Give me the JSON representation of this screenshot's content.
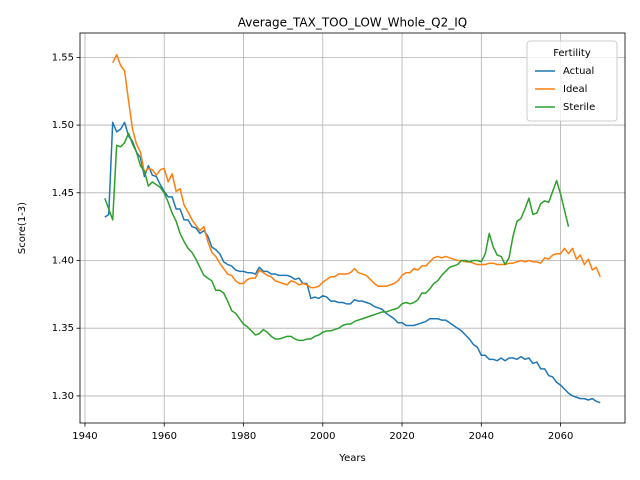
{
  "chart_data": {
    "type": "line",
    "title": "Average_TAX_TOO_LOW_Whole_Q2_IQ",
    "x_label": "Years",
    "y_label": "Score(1-3)",
    "legend_title": "Fertility",
    "legend_position": "upper right",
    "grid": true,
    "xlim": [
      1938.75,
      2076.25
    ],
    "ylim": [
      1.28,
      1.568
    ],
    "xticks": [
      1940,
      1960,
      1980,
      2000,
      2020,
      2040,
      2060
    ],
    "yticks": [
      {
        "value": 1.3,
        "label": "1.30"
      },
      1.35,
      {
        "value": 1.4,
        "label": "1.40"
      },
      1.45,
      {
        "value": 1.5,
        "label": "1.50"
      },
      1.55
    ],
    "x": [
      1945,
      1946,
      1947,
      1948,
      1949,
      1950,
      1951,
      1952,
      1953,
      1954,
      1955,
      1956,
      1957,
      1958,
      1959,
      1960,
      1961,
      1962,
      1963,
      1964,
      1965,
      1966,
      1967,
      1968,
      1969,
      1970,
      1971,
      1972,
      1973,
      1974,
      1975,
      1976,
      1977,
      1978,
      1979,
      1980,
      1981,
      1982,
      1983,
      1984,
      1985,
      1986,
      1987,
      1988,
      1989,
      1990,
      1991,
      1992,
      1993,
      1994,
      1995,
      1996,
      1997,
      1998,
      1999,
      2000,
      2001,
      2002,
      2003,
      2004,
      2005,
      2006,
      2007,
      2008,
      2009,
      2010,
      2011,
      2012,
      2013,
      2014,
      2015,
      2016,
      2017,
      2018,
      2019,
      2020,
      2021,
      2022,
      2023,
      2024,
      2025,
      2026,
      2027,
      2028,
      2029,
      2030,
      2031,
      2032,
      2033,
      2034,
      2035,
      2036,
      2037,
      2038,
      2039,
      2040,
      2041,
      2042,
      2043,
      2044,
      2045,
      2046,
      2047,
      2048,
      2049,
      2050,
      2051,
      2052,
      2053,
      2054,
      2055,
      2056,
      2057,
      2058,
      2059,
      2060,
      2061,
      2062,
      2063,
      2064,
      2065,
      2066,
      2067,
      2068,
      2069,
      2070
    ],
    "series": [
      {
        "name": "Actual",
        "color": "#1f77b4",
        "values": [
          1.432,
          1.434,
          1.502,
          1.495,
          1.497,
          1.502,
          1.492,
          1.488,
          1.48,
          1.476,
          1.462,
          1.47,
          1.463,
          1.462,
          1.456,
          1.451,
          1.447,
          1.447,
          1.438,
          1.438,
          1.43,
          1.43,
          1.425,
          1.424,
          1.42,
          1.422,
          1.418,
          1.41,
          1.408,
          1.405,
          1.399,
          1.397,
          1.396,
          1.393,
          1.392,
          1.392,
          1.391,
          1.391,
          1.39,
          1.395,
          1.392,
          1.392,
          1.39,
          1.39,
          1.389,
          1.389,
          1.389,
          1.388,
          1.386,
          1.387,
          1.383,
          1.383,
          1.372,
          1.373,
          1.372,
          1.374,
          1.373,
          1.37,
          1.37,
          1.369,
          1.369,
          1.368,
          1.368,
          1.371,
          1.37,
          1.37,
          1.369,
          1.368,
          1.366,
          1.365,
          1.364,
          1.361,
          1.359,
          1.357,
          1.354,
          1.354,
          1.352,
          1.352,
          1.352,
          1.353,
          1.354,
          1.355,
          1.357,
          1.357,
          1.357,
          1.356,
          1.356,
          1.354,
          1.352,
          1.35,
          1.348,
          1.345,
          1.342,
          1.338,
          1.336,
          1.33,
          1.33,
          1.327,
          1.327,
          1.326,
          1.328,
          1.326,
          1.328,
          1.328,
          1.327,
          1.329,
          1.327,
          1.328,
          1.324,
          1.325,
          1.32,
          1.32,
          1.315,
          1.314,
          1.31,
          1.308,
          1.305,
          1.302,
          1.3,
          1.299,
          1.298,
          1.298,
          1.297,
          1.298,
          1.296,
          1.295
        ]
      },
      {
        "name": "Ideal",
        "color": "#ff7f0e",
        "values": [
          null,
          null,
          1.546,
          1.552,
          1.544,
          1.54,
          1.518,
          1.497,
          1.486,
          1.48,
          1.465,
          1.468,
          1.467,
          1.463,
          1.467,
          1.468,
          1.458,
          1.464,
          1.451,
          1.453,
          1.441,
          1.436,
          1.43,
          1.426,
          1.422,
          1.425,
          1.414,
          1.406,
          1.403,
          1.398,
          1.394,
          1.39,
          1.389,
          1.385,
          1.383,
          1.383,
          1.386,
          1.387,
          1.387,
          1.393,
          1.391,
          1.389,
          1.388,
          1.385,
          1.384,
          1.383,
          1.382,
          1.385,
          1.384,
          1.382,
          1.383,
          1.382,
          1.38,
          1.38,
          1.381,
          1.384,
          1.386,
          1.388,
          1.388,
          1.39,
          1.39,
          1.39,
          1.391,
          1.394,
          1.391,
          1.39,
          1.389,
          1.386,
          1.383,
          1.381,
          1.381,
          1.381,
          1.382,
          1.383,
          1.385,
          1.389,
          1.391,
          1.391,
          1.394,
          1.393,
          1.396,
          1.396,
          1.399,
          1.402,
          1.403,
          1.402,
          1.403,
          1.402,
          1.401,
          1.4,
          1.4,
          1.399,
          1.399,
          1.398,
          1.397,
          1.397,
          1.397,
          1.398,
          1.398,
          1.397,
          1.397,
          1.397,
          1.398,
          1.398,
          1.399,
          1.4,
          1.399,
          1.4,
          1.399,
          1.399,
          1.398,
          1.402,
          1.401,
          1.404,
          1.405,
          1.405,
          1.409,
          1.405,
          1.409,
          1.401,
          1.404,
          1.397,
          1.401,
          1.393,
          1.395,
          1.388
        ]
      },
      {
        "name": "Sterile",
        "color": "#2ca02c",
        "values": [
          1.446,
          1.438,
          1.43,
          1.485,
          1.484,
          1.487,
          1.494,
          1.486,
          1.48,
          1.47,
          1.466,
          1.455,
          1.458,
          1.456,
          1.454,
          1.45,
          1.443,
          1.435,
          1.429,
          1.42,
          1.414,
          1.409,
          1.406,
          1.401,
          1.395,
          1.389,
          1.387,
          1.385,
          1.378,
          1.378,
          1.376,
          1.37,
          1.363,
          1.361,
          1.357,
          1.353,
          1.351,
          1.348,
          1.345,
          1.346,
          1.349,
          1.347,
          1.344,
          1.342,
          1.342,
          1.343,
          1.344,
          1.344,
          1.342,
          1.341,
          1.341,
          1.342,
          1.342,
          1.344,
          1.345,
          1.347,
          1.348,
          1.348,
          1.349,
          1.35,
          1.352,
          1.353,
          1.353,
          1.355,
          1.356,
          1.357,
          1.358,
          1.359,
          1.36,
          1.361,
          1.362,
          1.362,
          1.363,
          1.364,
          1.365,
          1.368,
          1.369,
          1.368,
          1.369,
          1.371,
          1.376,
          1.376,
          1.379,
          1.383,
          1.385,
          1.389,
          1.392,
          1.395,
          1.396,
          1.397,
          1.4,
          1.4,
          1.399,
          1.4,
          1.4,
          1.399,
          1.405,
          1.42,
          1.41,
          1.404,
          1.403,
          1.397,
          1.402,
          1.418,
          1.429,
          1.431,
          1.438,
          1.446,
          1.434,
          1.435,
          1.442,
          1.444,
          1.443,
          1.451,
          1.459,
          1.449,
          1.437,
          1.425,
          null,
          null,
          null,
          null,
          null,
          null,
          null,
          null
        ]
      }
    ]
  }
}
